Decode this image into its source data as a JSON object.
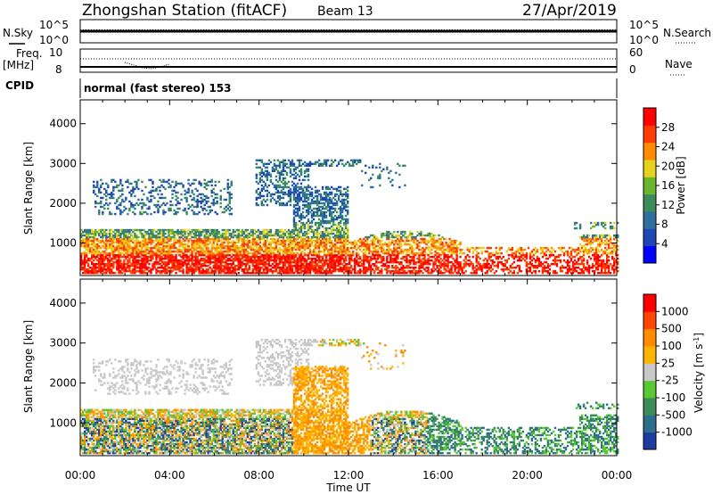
{
  "header": {
    "station": "Zhongshan Station (fitACF)",
    "beam": "Beam 13",
    "date": "27/Apr/2019"
  },
  "aux_panels": {
    "nsky_label": "N.Sky",
    "nsky_ticks": [
      "10^5",
      "10^0"
    ],
    "nsearch_label": "N.Search",
    "nsearch_ticks": [
      "10^5",
      "10^0"
    ],
    "freq_label": "Freq.",
    "freq_units": "[MHz]",
    "freq_ticks": [
      "10",
      "8"
    ],
    "nave_label": "Nave",
    "nave_ticks": [
      "60",
      "0"
    ],
    "cpid_label": "CPID",
    "cpid_text": "normal (fast stereo) 153"
  },
  "chart_data": [
    {
      "type": "heatmap",
      "name": "power",
      "ylabel": "Slant Range [km]",
      "xlabel": "",
      "yticks": [
        1000,
        2000,
        3000,
        4000
      ],
      "ylim": [
        180,
        4600
      ],
      "xlim": [
        0,
        24
      ],
      "colorbar": {
        "label": "Power [dB]",
        "ticks": [
          "4",
          "8",
          "12",
          "16",
          "20",
          "24",
          "28"
        ],
        "colors": [
          "#0000ff",
          "#1e46b4",
          "#2e6f9e",
          "#3c8c5a",
          "#6ab42e",
          "#e6d21e",
          "#ff8c00",
          "#ff3c00",
          "#ff0000"
        ]
      }
    },
    {
      "type": "heatmap",
      "name": "velocity",
      "ylabel": "Slant Range [km]",
      "xlabel": "Time UT",
      "xticks": [
        "00:00",
        "04:00",
        "08:00",
        "12:00",
        "16:00",
        "20:00",
        "00:00"
      ],
      "yticks": [
        1000,
        2000,
        3000,
        4000
      ],
      "ylim": [
        180,
        4600
      ],
      "xlim": [
        0,
        24
      ],
      "colorbar": {
        "label": "Velocity [m s",
        "label_sup": "-1",
        "label_end": "]",
        "ticks": [
          "1000",
          "500",
          "100",
          "25",
          "-25",
          "-100",
          "-500",
          "-1000"
        ],
        "colors": [
          "#1e3ca0",
          "#2e6e8c",
          "#3c8c5a",
          "#5ac832",
          "#c8c8c8",
          "#ffb400",
          "#ff8c00",
          "#ff4600",
          "#ff0000"
        ]
      }
    }
  ]
}
